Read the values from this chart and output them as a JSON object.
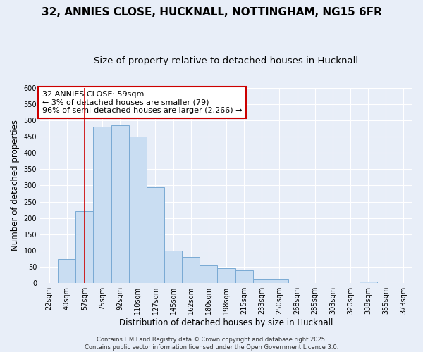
{
  "title1": "32, ANNIES CLOSE, HUCKNALL, NOTTINGHAM, NG15 6FR",
  "title2": "Size of property relative to detached houses in Hucknall",
  "xlabel": "Distribution of detached houses by size in Hucknall",
  "ylabel": "Number of detached properties",
  "categories": [
    "22sqm",
    "40sqm",
    "57sqm",
    "75sqm",
    "92sqm",
    "110sqm",
    "127sqm",
    "145sqm",
    "162sqm",
    "180sqm",
    "198sqm",
    "215sqm",
    "233sqm",
    "250sqm",
    "268sqm",
    "285sqm",
    "303sqm",
    "320sqm",
    "338sqm",
    "355sqm",
    "373sqm"
  ],
  "values": [
    0,
    75,
    220,
    480,
    485,
    450,
    295,
    100,
    80,
    55,
    45,
    40,
    12,
    12,
    0,
    0,
    0,
    0,
    5,
    0,
    0
  ],
  "bar_color": "#c9ddf2",
  "bar_edge_color": "#7aaad4",
  "background_color": "#e8eef8",
  "grid_color": "#ffffff",
  "vline_x_index": 2,
  "vline_color": "#cc0000",
  "annotation_line1": "32 ANNIES CLOSE: 59sqm",
  "annotation_line2": "← 3% of detached houses are smaller (79)",
  "annotation_line3": "96% of semi-detached houses are larger (2,266) →",
  "annotation_box_facecolor": "#ffffff",
  "annotation_box_edgecolor": "#cc0000",
  "ylim": [
    0,
    600
  ],
  "yticks": [
    0,
    50,
    100,
    150,
    200,
    250,
    300,
    350,
    400,
    450,
    500,
    550,
    600
  ],
  "footer_text": "Contains HM Land Registry data © Crown copyright and database right 2025.\nContains public sector information licensed under the Open Government Licence 3.0.",
  "title_fontsize": 11,
  "subtitle_fontsize": 9.5,
  "tick_fontsize": 7,
  "ylabel_fontsize": 8.5,
  "xlabel_fontsize": 8.5,
  "annotation_fontsize": 8,
  "footer_fontsize": 6
}
